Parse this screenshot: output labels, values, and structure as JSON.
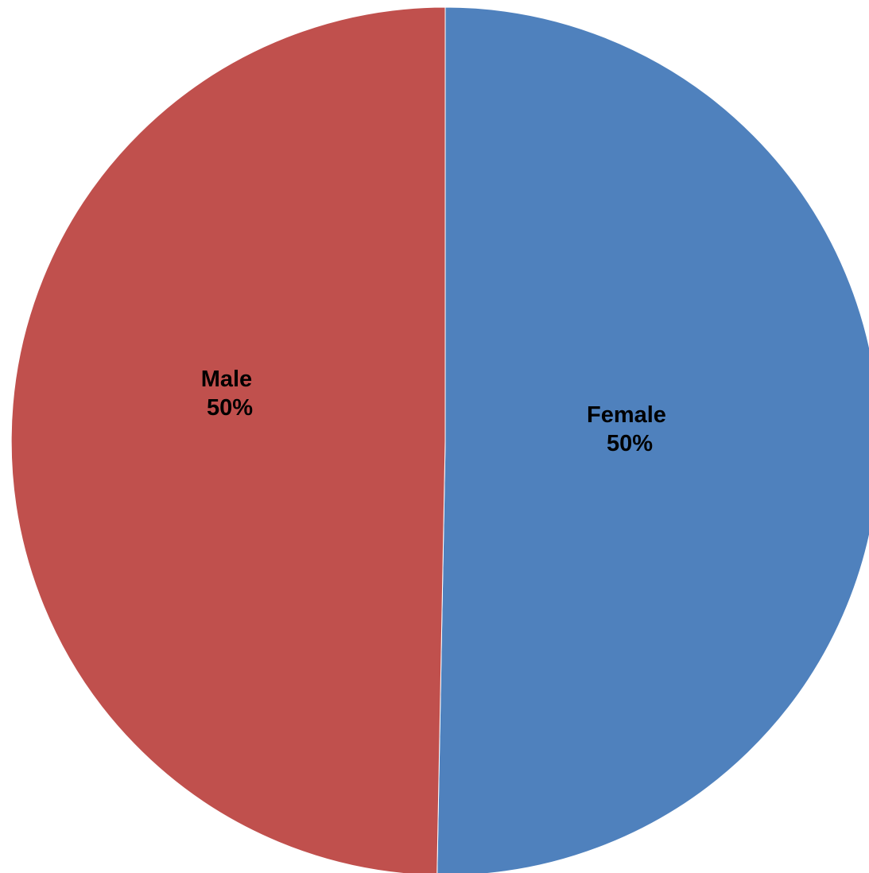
{
  "chart_data": {
    "type": "pie",
    "title": "",
    "start_angle_deg": 0,
    "direction": "clockwise",
    "slices": [
      {
        "label": "Female",
        "value": 50.3,
        "value_label": "50%",
        "color": "#4F81BD"
      },
      {
        "label": "Male",
        "value": 49.7,
        "value_label": "50%",
        "color": "#C0504D"
      }
    ]
  }
}
